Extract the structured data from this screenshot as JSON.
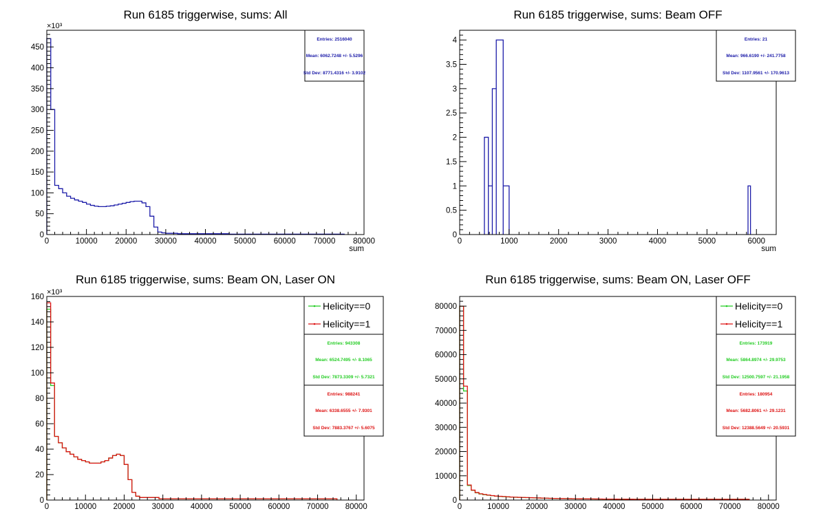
{
  "colors": {
    "blue": "#1a1aa8",
    "green": "#22cc22",
    "red": "#dd1111",
    "axis": "#000000"
  },
  "chart_data": [
    {
      "type": "histogram",
      "title": "Run 6185 triggerwise, sums: All",
      "xlabel": "sum",
      "xlim": [
        0,
        80000
      ],
      "ylim": [
        0,
        490
      ],
      "y_exponent": "×10³",
      "xticks": [
        "0",
        "10000",
        "20000",
        "30000",
        "40000",
        "50000",
        "60000",
        "70000",
        "80000"
      ],
      "yticks": [
        "0",
        "50",
        "100",
        "150",
        "200",
        "250",
        "300",
        "350",
        "400",
        "450"
      ],
      "series": [
        {
          "color": "blue",
          "bin_width": 1000,
          "x_start": 0,
          "values": [
            470,
            300,
            118,
            110,
            100,
            92,
            87,
            83,
            80,
            77,
            73,
            70,
            68,
            67,
            67,
            68,
            69,
            71,
            73,
            75,
            77,
            79,
            80,
            80,
            76,
            67,
            44,
            18,
            6,
            4,
            3,
            3,
            3,
            2,
            2,
            2,
            2,
            2,
            2,
            2,
            2,
            2,
            2,
            2,
            2,
            2,
            1,
            1,
            1,
            1,
            1,
            1,
            1,
            1,
            1,
            1,
            1,
            1,
            1,
            1,
            1,
            1,
            1,
            1,
            1,
            1,
            1,
            1,
            1,
            1,
            1,
            1,
            1,
            1,
            1
          ]
        }
      ],
      "stats": [
        {
          "color": "blue",
          "entries": "Entries: 2516040",
          "mean": "Mean: 6062.7248 +/- 5.5296",
          "std": "Std Dev: 8771.4316 +/- 3.9102"
        }
      ]
    },
    {
      "type": "histogram",
      "title": "Run 6185 triggerwise, sums: Beam OFF",
      "xlabel": "sum",
      "xlim": [
        0,
        6400
      ],
      "ylim": [
        0,
        4.2
      ],
      "xticks": [
        "0",
        "1000",
        "2000",
        "3000",
        "4000",
        "5000",
        "6000"
      ],
      "yticks": [
        "0",
        "0.5",
        "1",
        "1.5",
        "2",
        "2.5",
        "3",
        "3.5",
        "4"
      ],
      "series": [
        {
          "color": "blue",
          "bins": [
            {
              "x0": 500,
              "x1": 580,
              "y": 2
            },
            {
              "x0": 580,
              "x1": 660,
              "y": 1
            },
            {
              "x0": 660,
              "x1": 740,
              "y": 3
            },
            {
              "x0": 740,
              "x1": 880,
              "y": 4
            },
            {
              "x0": 880,
              "x1": 1000,
              "y": 1
            },
            {
              "x0": 5830,
              "x1": 5880,
              "y": 1
            }
          ]
        }
      ],
      "stats": [
        {
          "color": "blue",
          "entries": "Entries: 21",
          "mean": "Mean: 966.6190 +/- 241.7758",
          "std": "Std Dev: 1107.9561 +/- 170.9613"
        }
      ]
    },
    {
      "type": "histogram",
      "title": "Run 6185 triggerwise, sums: Beam ON, Laser ON",
      "xlabel": "",
      "xlim": [
        0,
        82000
      ],
      "ylim": [
        0,
        160
      ],
      "y_exponent": "×10³",
      "xticks": [
        "0",
        "10000",
        "20000",
        "30000",
        "40000",
        "50000",
        "60000",
        "70000",
        "80000"
      ],
      "yticks": [
        "0",
        "20",
        "40",
        "60",
        "80",
        "100",
        "120",
        "140",
        "160"
      ],
      "legend": [
        "Helicity==0",
        "Helicity==1"
      ],
      "series": [
        {
          "name": "Helicity==0",
          "color": "green",
          "bin_width": 1000,
          "x_start": 0,
          "values": [
            150,
            90,
            50,
            45,
            41,
            38,
            36,
            34,
            32,
            31,
            30,
            29,
            29,
            29,
            30,
            31,
            33,
            35,
            36,
            35,
            28,
            16,
            6,
            3,
            2,
            2,
            2,
            2,
            2,
            1,
            1,
            1,
            1,
            1,
            1,
            1,
            1,
            1,
            1,
            1,
            1,
            1,
            1,
            1,
            1,
            1,
            1,
            1,
            1,
            1,
            1,
            1,
            1,
            1,
            1,
            1,
            1,
            1,
            1,
            1,
            1,
            1,
            1,
            1,
            1,
            1,
            1,
            1,
            1,
            1,
            1,
            1,
            1,
            1,
            1
          ]
        },
        {
          "name": "Helicity==1",
          "color": "red",
          "bin_width": 1000,
          "x_start": 0,
          "values": [
            155,
            92,
            50,
            45,
            41,
            38,
            36,
            34,
            32,
            31,
            30,
            29,
            29,
            29,
            30,
            31,
            33,
            35,
            36,
            35,
            28,
            16,
            6,
            3,
            2,
            2,
            2,
            2,
            2,
            1,
            1,
            1,
            1,
            1,
            1,
            1,
            1,
            1,
            1,
            1,
            1,
            1,
            1,
            1,
            1,
            1,
            1,
            1,
            1,
            1,
            1,
            1,
            1,
            1,
            1,
            1,
            1,
            1,
            1,
            1,
            1,
            1,
            1,
            1,
            1,
            1,
            1,
            1,
            1,
            1,
            1,
            1,
            1,
            1,
            1
          ]
        }
      ],
      "stats": [
        {
          "color": "green",
          "entries": "Entries: 943308",
          "mean": "Mean: 6524.7495 +/- 8.1065",
          "std": "Std Dev: 7873.3309 +/- 5.7321"
        },
        {
          "color": "red",
          "entries": "Entries: 988241",
          "mean": "Mean: 6338.6555 +/- 7.9301",
          "std": "Std Dev: 7883.3767 +/- 5.6075"
        }
      ]
    },
    {
      "type": "histogram",
      "title": "Run 6185 triggerwise, sums: Beam ON, Laser OFF",
      "xlabel": "",
      "xlim": [
        0,
        82000
      ],
      "ylim": [
        0,
        84000
      ],
      "xticks": [
        "0",
        "10000",
        "20000",
        "30000",
        "40000",
        "50000",
        "60000",
        "70000",
        "80000"
      ],
      "yticks": [
        "0",
        "10000",
        "20000",
        "30000",
        "40000",
        "50000",
        "60000",
        "70000",
        "80000"
      ],
      "legend": [
        "Helicity==0",
        "Helicity==1"
      ],
      "series": [
        {
          "name": "Helicity==0",
          "color": "green",
          "bin_width": 1000,
          "x_start": 0,
          "values": [
            80000,
            45000,
            6000,
            4000,
            3000,
            2500,
            2200,
            2000,
            1800,
            1600,
            1500,
            1400,
            1300,
            1200,
            1150,
            1100,
            1050,
            1000,
            950,
            900,
            850,
            800,
            750,
            700,
            650,
            620,
            600,
            580,
            560,
            540,
            520,
            500,
            480,
            460,
            440,
            420,
            400,
            390,
            380,
            370,
            360,
            350,
            340,
            330,
            320,
            310,
            300,
            300,
            300,
            300,
            300,
            300,
            300,
            300,
            300,
            300,
            300,
            300,
            300,
            300,
            300,
            300,
            300,
            300,
            300,
            300,
            300,
            300,
            300,
            300,
            300,
            300,
            300,
            300,
            300
          ]
        },
        {
          "name": "Helicity==1",
          "color": "red",
          "bin_width": 1000,
          "x_start": 0,
          "values": [
            80000,
            47000,
            6200,
            4100,
            3100,
            2600,
            2300,
            2050,
            1850,
            1650,
            1550,
            1450,
            1350,
            1250,
            1180,
            1120,
            1070,
            1020,
            970,
            920,
            870,
            820,
            770,
            720,
            670,
            640,
            620,
            600,
            580,
            560,
            540,
            520,
            500,
            480,
            460,
            440,
            420,
            400,
            390,
            380,
            370,
            360,
            350,
            340,
            330,
            320,
            310,
            310,
            310,
            310,
            310,
            310,
            310,
            310,
            310,
            310,
            310,
            310,
            310,
            310,
            310,
            310,
            310,
            310,
            310,
            310,
            310,
            310,
            310,
            310,
            310,
            310,
            310,
            310,
            310
          ]
        }
      ],
      "stats": [
        {
          "color": "green",
          "entries": "Entries: 173919",
          "mean": "Mean: 5864.8974 +/- 29.9753",
          "std": "Std Dev: 12500.7597 +/- 21.1958"
        },
        {
          "color": "red",
          "entries": "Entries: 180954",
          "mean": "Mean: 5682.8061 +/- 29.1231",
          "std": "Std Dev: 12388.5649 +/- 20.5931"
        }
      ]
    }
  ]
}
